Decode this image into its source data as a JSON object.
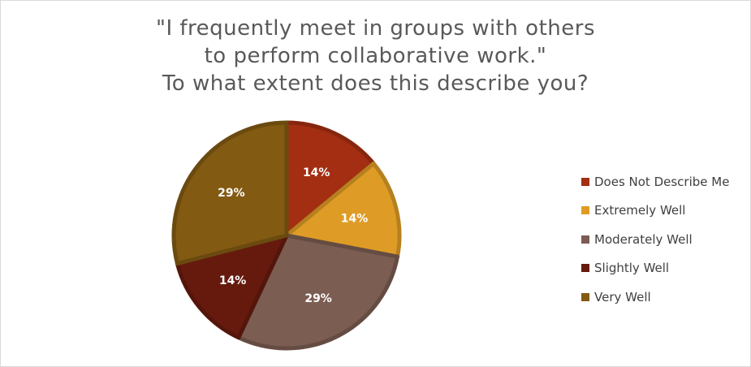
{
  "chart_data": {
    "type": "pie",
    "title_lines": [
      "\"I frequently meet in groups with others",
      "to perform collaborative work.\"",
      "To what extent does this describe you?"
    ],
    "slices": [
      {
        "name": "Does Not Describe Me",
        "value": 14,
        "label": "14%",
        "color": "#A32E12"
      },
      {
        "name": "Extremely Well",
        "value": 14,
        "label": "14%",
        "color": "#DE9C26"
      },
      {
        "name": "Moderately Well",
        "value": 29,
        "label": "29%",
        "color": "#7B5D52"
      },
      {
        "name": "Slightly Well",
        "value": 14,
        "label": "14%",
        "color": "#661A0E"
      },
      {
        "name": "Very Well",
        "value": 29,
        "label": "29%",
        "color": "#835A12"
      }
    ],
    "legend_position": "right"
  }
}
